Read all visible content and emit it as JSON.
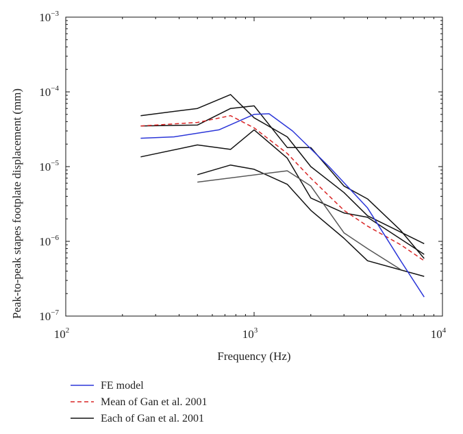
{
  "chart_data": {
    "type": "line",
    "title": "",
    "xlabel": "Frequency (Hz)",
    "ylabel": "Peak-to-peak stapes footplate displacement (mm)",
    "xscale": "log",
    "yscale": "log",
    "xlim": [
      100,
      10000
    ],
    "ylim": [
      1e-07,
      0.001
    ],
    "grid": false,
    "legend_position": "bottom-left, below plot",
    "x_ticks": [
      {
        "value": 100,
        "base": "10",
        "exp": "2"
      },
      {
        "value": 1000,
        "base": "10",
        "exp": "3"
      },
      {
        "value": 10000,
        "base": "10",
        "exp": "4"
      }
    ],
    "y_ticks": [
      {
        "value": 1e-07,
        "base": "10",
        "exp": "−7"
      },
      {
        "value": 1e-06,
        "base": "10",
        "exp": "−6"
      },
      {
        "value": 1e-05,
        "base": "10",
        "exp": "−5"
      },
      {
        "value": 0.0001,
        "base": "10",
        "exp": "−4"
      },
      {
        "value": 0.001,
        "base": "10",
        "exp": "−3"
      }
    ],
    "series": [
      {
        "name": "FE model",
        "color": "#2a35d8",
        "dash": "solid",
        "x": [
          250,
          375,
          650,
          1000,
          1200,
          1600,
          2500,
          4000,
          6000,
          8000
        ],
        "y": [
          2.4e-05,
          2.5e-05,
          3.1e-05,
          5e-05,
          5.1e-05,
          3e-05,
          1e-05,
          2.8e-06,
          5.5e-07,
          1.8e-07
        ]
      },
      {
        "name": "Mean of Gan et al. 2001",
        "color": "#d92424",
        "dash": "dashed",
        "x": [
          250,
          500,
          750,
          1000,
          1500,
          2000,
          3000,
          4000,
          6000,
          8000
        ],
        "y": [
          3.5e-05,
          3.9e-05,
          4.8e-05,
          3.3e-05,
          1.5e-05,
          7e-06,
          2.6e-06,
          1.6e-06,
          9e-07,
          5.5e-07
        ]
      },
      {
        "name": "Each of Gan et al. 2001",
        "color": "#111111",
        "dash": "solid",
        "x": [
          250,
          500,
          750,
          1000,
          1500,
          2000,
          3000,
          4000,
          8000
        ],
        "y": [
          4.8e-05,
          6e-05,
          9.2e-05,
          4.5e-05,
          2.5e-05,
          1e-05,
          4.5e-06,
          2.2e-06,
          9.3e-07
        ]
      },
      {
        "color": "#111111",
        "dash": "solid",
        "x": [
          250,
          500,
          750,
          1000,
          1500,
          2000,
          3000,
          4000,
          6000,
          8000
        ],
        "y": [
          3.5e-05,
          3.6e-05,
          6e-05,
          6.5e-05,
          1.8e-05,
          1.8e-05,
          5.5e-06,
          3.7e-06,
          1.4e-06,
          5.9e-07
        ]
      },
      {
        "color": "#111111",
        "dash": "solid",
        "x": [
          250,
          500,
          750,
          1000,
          1500,
          2000,
          3000,
          4000,
          8000
        ],
        "y": [
          1.35e-05,
          1.95e-05,
          1.7e-05,
          3.1e-05,
          1.3e-05,
          3.8e-06,
          2.4e-06,
          2.1e-06,
          6.7e-07
        ]
      },
      {
        "color": "#111111",
        "dash": "solid",
        "x": [
          500,
          750,
          1000,
          1500,
          2000,
          3000,
          4000,
          8000
        ],
        "y": [
          7.8e-06,
          1.05e-05,
          9.2e-06,
          5.8e-06,
          2.6e-06,
          1.1e-06,
          5.5e-07,
          3.4e-07
        ]
      },
      {
        "color": "#555555",
        "dash": "solid",
        "x": [
          500,
          1500,
          2000,
          3000,
          4000,
          6000
        ],
        "y": [
          6.2e-06,
          8.8e-06,
          5.5e-06,
          1.3e-06,
          8e-07,
          4.2e-07
        ]
      }
    ]
  }
}
